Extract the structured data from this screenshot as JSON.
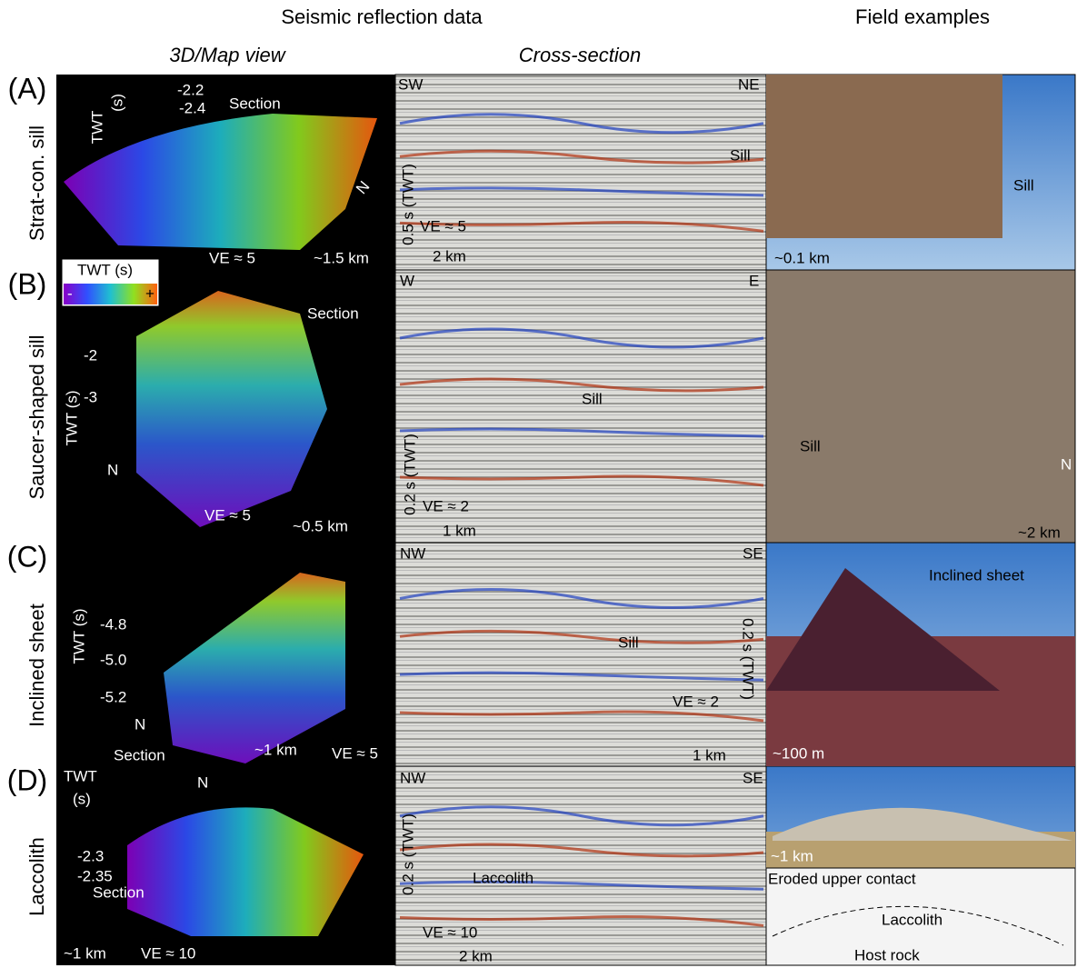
{
  "headers": {
    "seismic": "Seismic reflection data",
    "field": "Field examples",
    "map_view": "3D/Map view",
    "cross_section": "Cross-section"
  },
  "rows": [
    {
      "letter": "(A)",
      "name": "Strat-con. sill",
      "map": [
        "TWT",
        "(s)",
        "-2.2",
        "-2.4",
        "Section",
        "N",
        "VE ≈ 5",
        "~1.5 km"
      ],
      "section": [
        "SW",
        "NE",
        "Sill",
        "0.5 s (TWT)",
        "VE ≈ 5",
        "2 km"
      ],
      "field": [
        "Sill",
        "~0.1 km"
      ]
    },
    {
      "letter": "(B)",
      "name": "Saucer-shaped sill",
      "map": [
        "TWT (s)",
        "-",
        "+",
        "Section",
        "-2",
        "-3",
        "TWT (s)",
        "N",
        "VE ≈ 5",
        "~0.5 km"
      ],
      "section": [
        "W",
        "E",
        "Sill",
        "0.2 s (TWT)",
        "VE ≈ 2",
        "1 km"
      ],
      "field": [
        "Sill",
        "N",
        "~2 km"
      ]
    },
    {
      "letter": "(C)",
      "name": "Inclined sheet",
      "map": [
        "-4.8",
        "-5.0",
        "-5.2",
        "TWT (s)",
        "N",
        "Section",
        "~1 km",
        "VE ≈ 5"
      ],
      "section": [
        "NW",
        "SE",
        "Sill",
        "0.2 s (TWT)",
        "VE ≈ 2",
        "1 km"
      ],
      "field": [
        "Inclined sheet",
        "~100 m"
      ]
    },
    {
      "letter": "(D)",
      "name": "Laccolith",
      "map": [
        "TWT",
        "(s)",
        "N",
        "-2.3",
        "-2.35",
        "Section",
        "~1 km",
        "VE ≈ 10"
      ],
      "section": [
        "NW",
        "SE",
        "Laccolith",
        "0.2 s (TWT)",
        "VE ≈ 10",
        "2 km"
      ],
      "field": [
        "~1 km",
        "Eroded upper contact",
        "Laccolith",
        "Host rock"
      ]
    }
  ]
}
